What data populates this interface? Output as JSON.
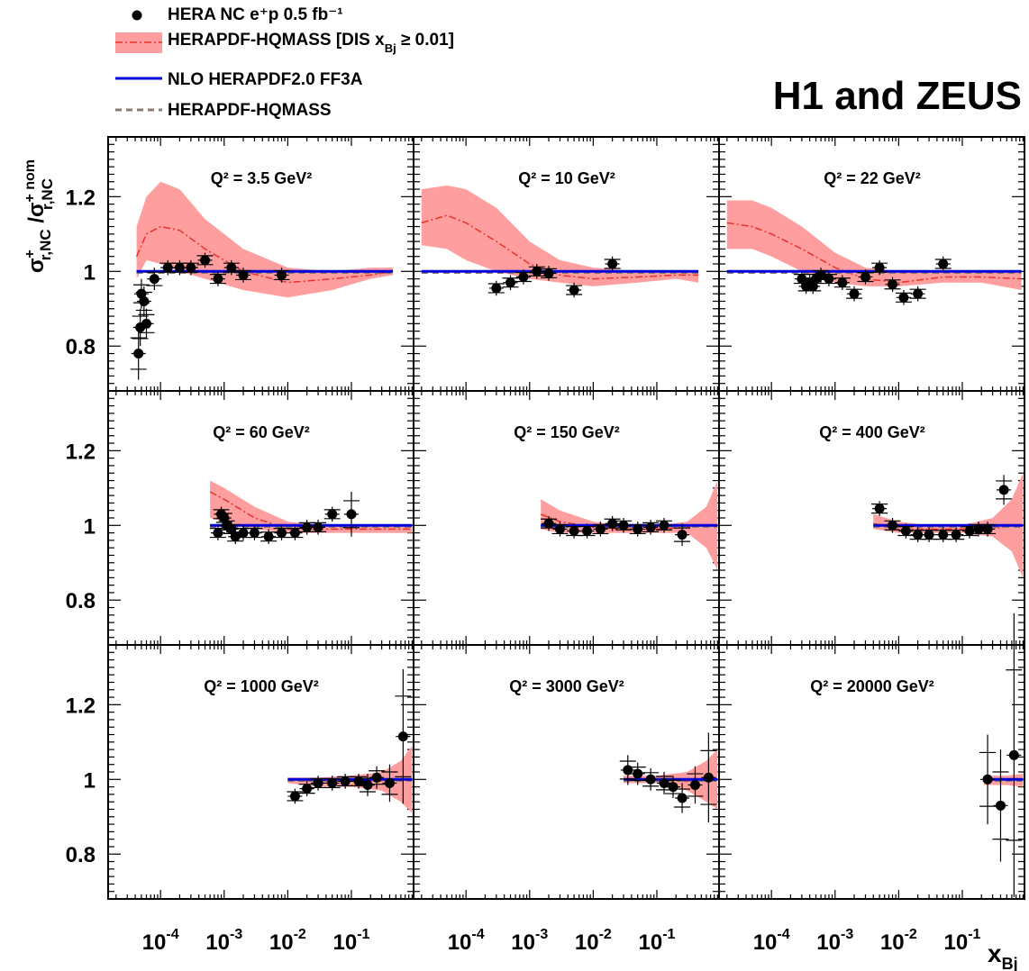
{
  "legend": {
    "data_label": "HERA NC e⁺p 0.5 fb⁻¹",
    "band_label": "HERAPDF-HQMASS [DIS x",
    "band_label_sub": "Bj",
    "band_label_tail": " ≥ 0.01]",
    "nlo_label": "NLO HERAPDF2.0 FF3A",
    "dashed_label": "HERAPDF-HQMASS"
  },
  "experiment_label": "H1 and ZEUS",
  "colors": {
    "band": "#ff9e9e",
    "band_central": "#e8322a",
    "nlo": "#0000dd",
    "dashed": "#8b7b70",
    "points": "#000000"
  },
  "chart_data": {
    "type": "scatter",
    "x_scale": "log",
    "xlim": [
      1.5e-05,
      0.95
    ],
    "ylim": [
      0.68,
      1.36
    ],
    "y_ticks": [
      {
        "value": 0.8,
        "label": "0.8"
      },
      {
        "value": 1.0,
        "label": "1"
      },
      {
        "value": 1.2,
        "label": "1.2"
      }
    ],
    "x_ticks": [
      {
        "value": 0.0001,
        "base": "10",
        "exp": "-4"
      },
      {
        "value": 0.001,
        "base": "10",
        "exp": "-3"
      },
      {
        "value": 0.01,
        "base": "10",
        "exp": "-2"
      },
      {
        "value": 0.1,
        "base": "10",
        "exp": "-1"
      }
    ],
    "ylabel": {
      "main": "σ",
      "sup1": "+",
      "sub1": "r,NC",
      "sep": " /σ",
      "sup2": "+ nom",
      "sub2": "r,NC"
    },
    "xlabel": {
      "main": "x",
      "sub": "Bj"
    },
    "panels": [
      {
        "label": "Q² = 3.5 GeV²",
        "points": [
          [
            4.5e-05,
            0.78,
            0.07
          ],
          [
            4.8e-05,
            0.85,
            0.05
          ],
          [
            5e-05,
            0.94,
            0.04
          ],
          [
            5.5e-05,
            0.92,
            0.04
          ],
          [
            6e-05,
            0.86,
            0.04
          ],
          [
            8e-05,
            0.98,
            0.03
          ],
          [
            0.00013,
            1.01,
            0.02
          ],
          [
            0.0002,
            1.01,
            0.02
          ],
          [
            0.0003,
            1.01,
            0.02
          ],
          [
            0.0005,
            1.03,
            0.02
          ],
          [
            0.0008,
            0.98,
            0.02
          ],
          [
            0.0013,
            1.01,
            0.02
          ],
          [
            0.002,
            0.99,
            0.02
          ],
          [
            0.008,
            0.99,
            0.02
          ]
        ],
        "band": {
          "x": [
            4.2e-05,
            6e-05,
            0.0001,
            0.0002,
            0.0005,
            0.002,
            0.01,
            0.05,
            0.2,
            0.45
          ],
          "lo": [
            0.98,
            1.03,
            1.02,
            1.0,
            0.98,
            0.95,
            0.93,
            0.95,
            0.98,
            0.99
          ],
          "hi": [
            1.12,
            1.2,
            1.24,
            1.22,
            1.14,
            1.06,
            1.01,
            1.0,
            1.01,
            1.01
          ],
          "c": [
            1.04,
            1.1,
            1.12,
            1.11,
            1.06,
            1.0,
            0.97,
            0.98,
            0.99,
            1.0
          ]
        },
        "nlo": [
          4.2e-05,
          0.45
        ],
        "dashed": [
          4.2e-05,
          0.45
        ]
      },
      {
        "label": "Q² = 10 GeV²",
        "points": [
          [
            0.0003,
            0.955,
            0.02
          ],
          [
            0.0005,
            0.97,
            0.02
          ],
          [
            0.0008,
            0.985,
            0.02
          ],
          [
            0.0013,
            1.0,
            0.02
          ],
          [
            0.002,
            0.995,
            0.02
          ],
          [
            0.005,
            0.95,
            0.02
          ],
          [
            0.02,
            1.02,
            0.02
          ]
        ],
        "band": {
          "x": [
            2e-05,
            5e-05,
            0.0001,
            0.0003,
            0.001,
            0.003,
            0.01,
            0.05,
            0.2,
            0.45
          ],
          "lo": [
            1.07,
            1.06,
            1.03,
            1.0,
            0.98,
            0.97,
            0.96,
            0.97,
            0.98,
            0.97
          ],
          "hi": [
            1.22,
            1.23,
            1.22,
            1.17,
            1.08,
            1.03,
            1.01,
            1.0,
            1.0,
            1.0
          ],
          "c": [
            1.13,
            1.15,
            1.13,
            1.08,
            1.02,
            0.99,
            0.98,
            0.985,
            0.99,
            0.99
          ]
        },
        "nlo": [
          2e-05,
          0.45
        ],
        "dashed": [
          2e-05,
          0.45
        ]
      },
      {
        "label": "Q² = 22 GeV²",
        "points": [
          [
            0.0003,
            0.98,
            0.02
          ],
          [
            0.00035,
            0.96,
            0.02
          ],
          [
            0.0004,
            0.97,
            0.02
          ],
          [
            0.00045,
            0.96,
            0.02
          ],
          [
            0.0005,
            0.98,
            0.02
          ],
          [
            0.0006,
            0.99,
            0.02
          ],
          [
            0.0008,
            0.98,
            0.02
          ],
          [
            0.0013,
            0.97,
            0.02
          ],
          [
            0.002,
            0.94,
            0.02
          ],
          [
            0.003,
            0.985,
            0.02
          ],
          [
            0.005,
            1.01,
            0.02
          ],
          [
            0.008,
            0.965,
            0.02
          ],
          [
            0.012,
            0.93,
            0.02
          ],
          [
            0.02,
            0.94,
            0.02
          ],
          [
            0.05,
            1.02,
            0.02
          ]
        ],
        "band": {
          "x": [
            2e-05,
            5e-05,
            0.0001,
            0.0003,
            0.001,
            0.003,
            0.01,
            0.05,
            0.2,
            0.85
          ],
          "lo": [
            1.06,
            1.06,
            1.04,
            1.0,
            0.97,
            0.96,
            0.96,
            0.97,
            0.97,
            0.95
          ],
          "hi": [
            1.19,
            1.19,
            1.17,
            1.12,
            1.05,
            1.01,
            1.0,
            1.0,
            1.0,
            1.0
          ],
          "c": [
            1.13,
            1.12,
            1.1,
            1.06,
            1.01,
            0.98,
            0.97,
            0.985,
            0.985,
            0.98
          ]
        },
        "nlo": [
          2e-05,
          0.85
        ],
        "dashed": [
          2e-05,
          0.85
        ]
      },
      {
        "label": "Q² = 60 GeV²",
        "points": [
          [
            0.0008,
            0.98,
            0.02
          ],
          [
            0.0009,
            1.03,
            0.02
          ],
          [
            0.001,
            1.02,
            0.02
          ],
          [
            0.0011,
            1.0,
            0.02
          ],
          [
            0.0013,
            0.99,
            0.02
          ],
          [
            0.0015,
            0.97,
            0.02
          ],
          [
            0.002,
            0.98,
            0.02
          ],
          [
            0.003,
            0.98,
            0.02
          ],
          [
            0.005,
            0.97,
            0.02
          ],
          [
            0.008,
            0.98,
            0.02
          ],
          [
            0.013,
            0.98,
            0.02
          ],
          [
            0.02,
            0.995,
            0.02
          ],
          [
            0.03,
            0.995,
            0.02
          ],
          [
            0.05,
            1.03,
            0.02
          ],
          [
            0.1,
            1.03,
            0.06
          ]
        ],
        "band": {
          "x": [
            0.0006,
            0.001,
            0.003,
            0.01,
            0.03,
            0.1,
            0.3,
            0.9
          ],
          "lo": [
            1.02,
            1.01,
            0.99,
            0.98,
            0.98,
            0.98,
            0.98,
            0.98
          ],
          "hi": [
            1.12,
            1.1,
            1.05,
            1.01,
            1.0,
            1.0,
            1.0,
            1.0
          ],
          "c": [
            1.09,
            1.07,
            1.02,
            0.99,
            0.99,
            0.99,
            0.99,
            0.99
          ]
        },
        "nlo": [
          0.0006,
          0.9
        ],
        "dashed": [
          0.0006,
          0.9
        ]
      },
      {
        "label": "Q² = 150 GeV²",
        "points": [
          [
            0.002,
            1.005,
            0.02
          ],
          [
            0.003,
            0.99,
            0.02
          ],
          [
            0.005,
            0.985,
            0.02
          ],
          [
            0.008,
            0.985,
            0.02
          ],
          [
            0.013,
            0.99,
            0.02
          ],
          [
            0.02,
            1.005,
            0.02
          ],
          [
            0.03,
            1.0,
            0.02
          ],
          [
            0.05,
            0.99,
            0.02
          ],
          [
            0.08,
            0.995,
            0.02
          ],
          [
            0.13,
            1.0,
            0.02
          ],
          [
            0.25,
            0.975,
            0.03
          ]
        ],
        "band": {
          "x": [
            0.0015,
            0.003,
            0.01,
            0.03,
            0.1,
            0.3,
            0.6,
            0.9
          ],
          "lo": [
            0.99,
            0.98,
            0.98,
            0.98,
            0.98,
            0.98,
            0.94,
            0.88
          ],
          "hi": [
            1.07,
            1.04,
            1.01,
            1.0,
            1.0,
            1.01,
            1.05,
            1.12
          ],
          "c": [
            1.03,
            1.01,
            0.995,
            0.99,
            0.99,
            0.995,
            1.0,
            1.0
          ]
        },
        "nlo": [
          0.0015,
          0.9
        ],
        "dashed": [
          0.0015,
          0.9
        ]
      },
      {
        "label": "Q² = 400 GeV²",
        "points": [
          [
            0.005,
            1.045,
            0.02
          ],
          [
            0.008,
            1.0,
            0.02
          ],
          [
            0.013,
            0.985,
            0.02
          ],
          [
            0.02,
            0.975,
            0.02
          ],
          [
            0.03,
            0.975,
            0.02
          ],
          [
            0.05,
            0.975,
            0.02
          ],
          [
            0.08,
            0.975,
            0.02
          ],
          [
            0.13,
            0.985,
            0.02
          ],
          [
            0.18,
            0.99,
            0.02
          ],
          [
            0.25,
            0.99,
            0.02
          ],
          [
            0.45,
            1.095,
            0.04
          ]
        ],
        "band": {
          "x": [
            0.004,
            0.01,
            0.03,
            0.1,
            0.3,
            0.6,
            0.9
          ],
          "lo": [
            0.99,
            0.98,
            0.98,
            0.98,
            0.97,
            0.93,
            0.86
          ],
          "hi": [
            1.03,
            1.01,
            1.0,
            1.0,
            1.02,
            1.07,
            1.14
          ],
          "c": [
            1.005,
            0.99,
            0.99,
            0.99,
            0.99,
            1.0,
            1.0
          ]
        },
        "nlo": [
          0.004,
          0.9
        ],
        "dashed": [
          0.004,
          0.9
        ]
      },
      {
        "label": "Q² = 1000 GeV²",
        "points": [
          [
            0.013,
            0.955,
            0.02
          ],
          [
            0.02,
            0.975,
            0.02
          ],
          [
            0.03,
            0.99,
            0.02
          ],
          [
            0.05,
            0.99,
            0.02
          ],
          [
            0.08,
            0.995,
            0.02
          ],
          [
            0.13,
            0.995,
            0.02
          ],
          [
            0.18,
            0.985,
            0.03
          ],
          [
            0.25,
            1.005,
            0.03
          ],
          [
            0.4,
            0.99,
            0.05
          ],
          [
            0.65,
            1.115,
            0.18
          ]
        ],
        "band": {
          "x": [
            0.01,
            0.03,
            0.1,
            0.3,
            0.6,
            0.9
          ],
          "lo": [
            0.99,
            0.98,
            0.98,
            0.97,
            0.94,
            0.91
          ],
          "hi": [
            1.005,
            1.005,
            1.01,
            1.02,
            1.05,
            1.09
          ],
          "c": [
            1.0,
            0.995,
            0.995,
            0.995,
            1.0,
            1.0
          ]
        },
        "nlo": [
          0.01,
          0.9
        ],
        "dashed": [
          0.01,
          0.9
        ]
      },
      {
        "label": "Q² = 3000 GeV²",
        "points": [
          [
            0.035,
            1.025,
            0.04
          ],
          [
            0.05,
            1.015,
            0.03
          ],
          [
            0.08,
            1.0,
            0.03
          ],
          [
            0.13,
            0.99,
            0.03
          ],
          [
            0.18,
            0.98,
            0.03
          ],
          [
            0.25,
            0.95,
            0.04
          ],
          [
            0.4,
            0.985,
            0.05
          ],
          [
            0.65,
            1.005,
            0.12
          ]
        ],
        "band": {
          "x": [
            0.03,
            0.1,
            0.3,
            0.6,
            0.9
          ],
          "lo": [
            0.99,
            0.99,
            0.97,
            0.94,
            0.92
          ],
          "hi": [
            1.01,
            1.01,
            1.02,
            1.05,
            1.08
          ],
          "c": [
            1.0,
            1.0,
            0.995,
            1.0,
            1.0
          ]
        },
        "nlo": [
          0.03,
          0.9
        ],
        "dashed": [
          0.03,
          0.9
        ]
      },
      {
        "label": "Q² = 20000 GeV²",
        "points": [
          [
            0.25,
            1.0,
            0.12
          ],
          [
            0.4,
            0.93,
            0.15
          ],
          [
            0.65,
            1.065,
            0.38
          ]
        ],
        "band": {
          "x": [
            0.22,
            0.5,
            0.9
          ],
          "lo": [
            0.985,
            0.985,
            0.98
          ],
          "hi": [
            1.01,
            1.01,
            1.015
          ],
          "c": [
            1.0,
            1.0,
            1.0
          ]
        },
        "nlo": [
          0.22,
          0.9
        ],
        "dashed": [
          0.22,
          0.9
        ]
      }
    ]
  }
}
